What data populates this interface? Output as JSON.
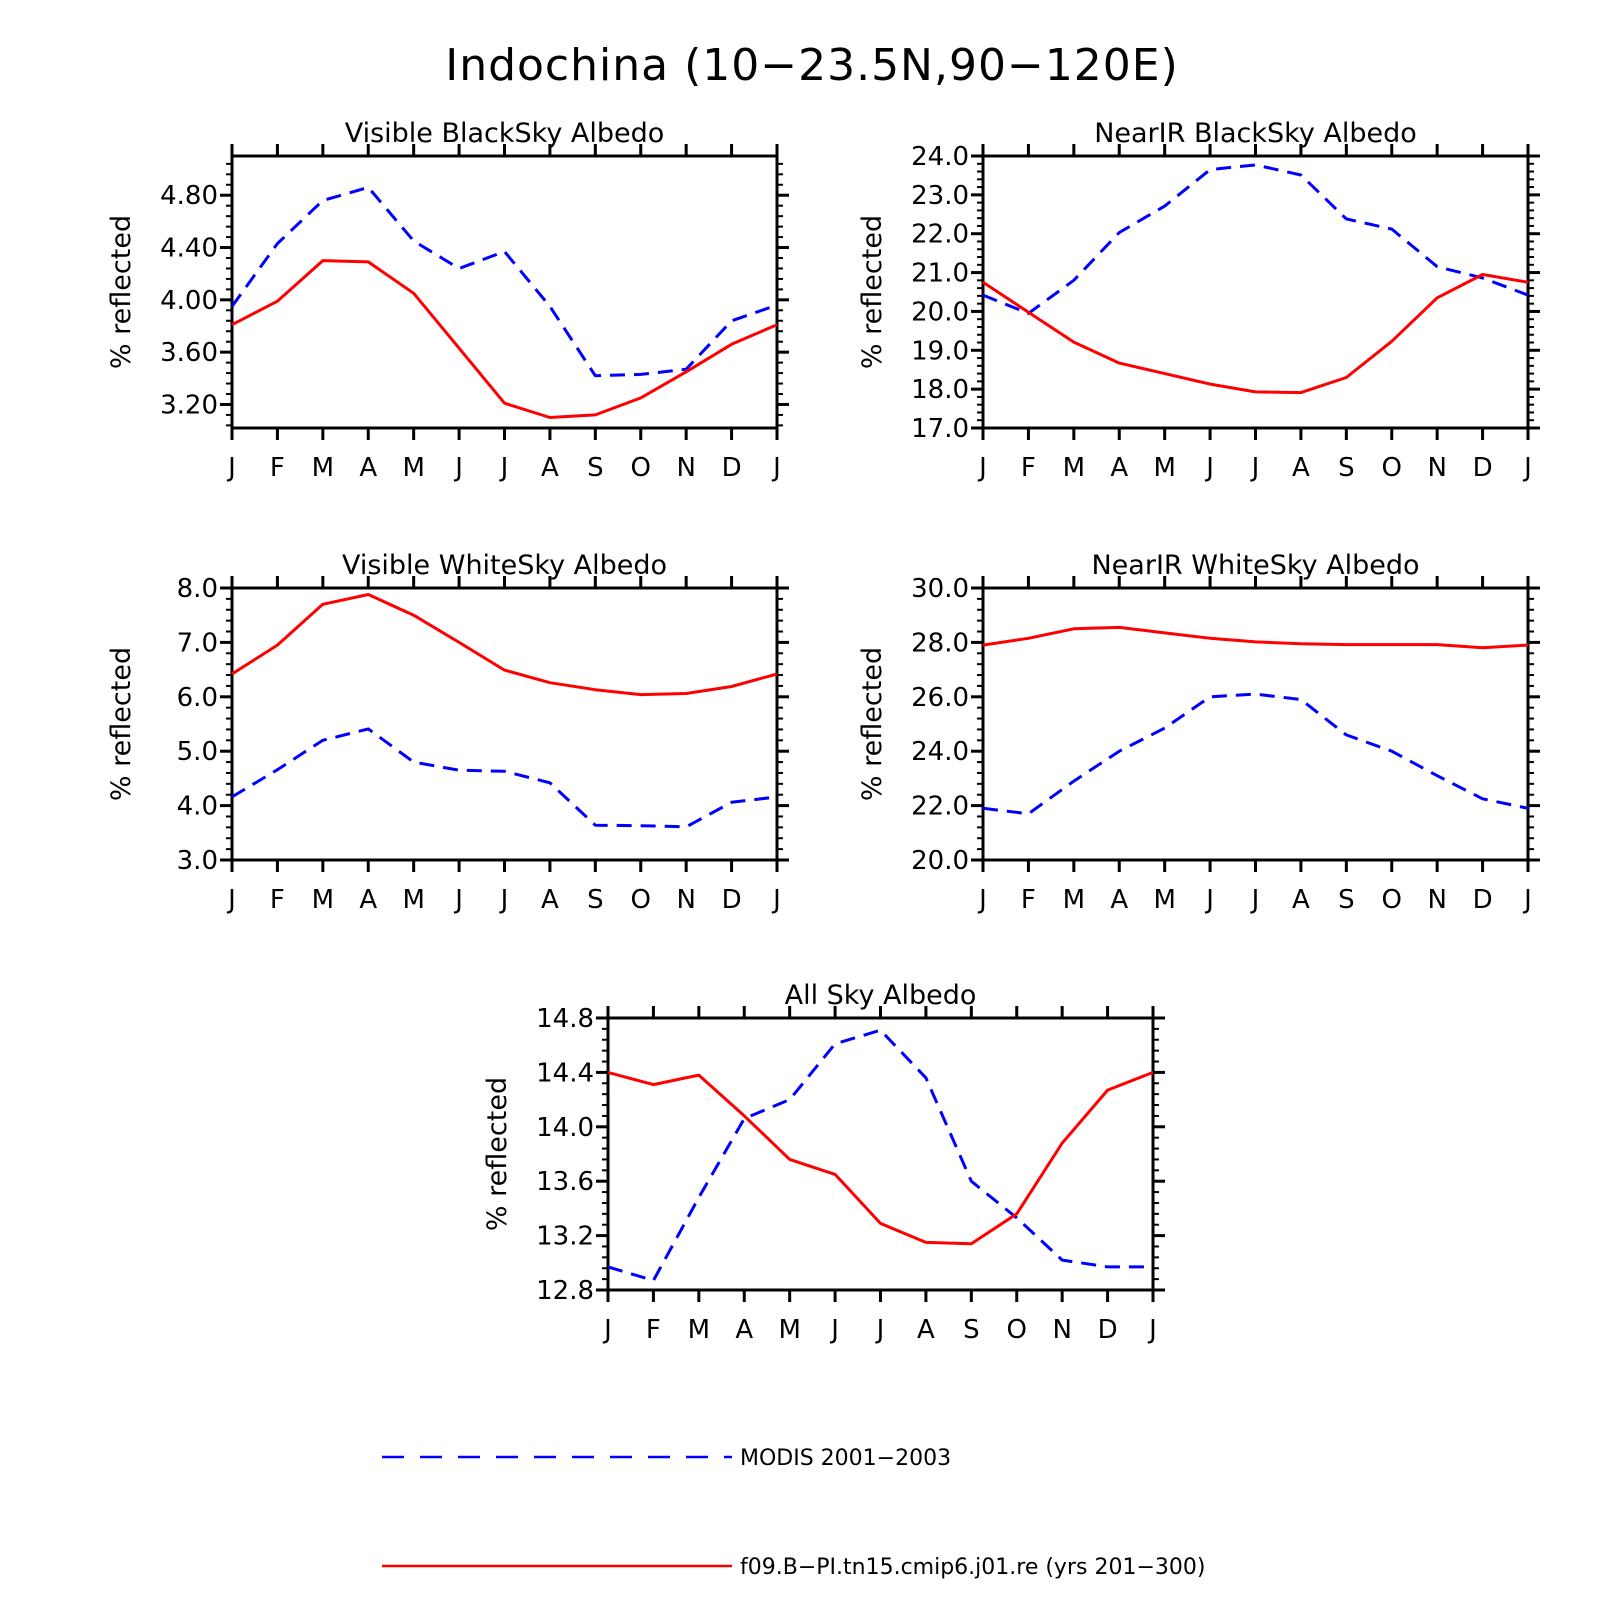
{
  "figure": {
    "title": "Indochina (10−23.5N,90−120E)"
  },
  "legend": {
    "entries": [
      {
        "label": "MODIS 2001−2003",
        "color": "#0000ff",
        "style": "dashed"
      },
      {
        "label": "f09.B−PI.tn15.cmip6.j01.re (yrs 201−300)",
        "color": "#ff0000",
        "style": "solid"
      }
    ]
  },
  "chart_data": [
    {
      "type": "line",
      "title": "Visible BlackSky Albedo",
      "ylabel": "% reflected",
      "x": [
        "J",
        "F",
        "M",
        "A",
        "M",
        "J",
        "J",
        "A",
        "S",
        "O",
        "N",
        "D",
        "J"
      ],
      "ylim": [
        3.02,
        5.1
      ],
      "yticks": [
        "3.20",
        "3.60",
        "4.00",
        "4.40",
        "4.80"
      ],
      "series": [
        {
          "name": "MODIS 2001−2003",
          "color": "#0000ff",
          "style": "dashed",
          "values": [
            3.95,
            4.43,
            4.76,
            4.86,
            4.45,
            4.24,
            4.37,
            3.95,
            3.42,
            3.43,
            3.47,
            3.84,
            3.96
          ]
        },
        {
          "name": "f09.B−PI.tn15.cmip6.j01.re (yrs 201−300)",
          "color": "#ff0000",
          "style": "solid",
          "values": [
            3.81,
            3.99,
            4.3,
            4.29,
            4.05,
            3.63,
            3.21,
            3.1,
            3.12,
            3.25,
            3.45,
            3.66,
            3.81
          ]
        }
      ]
    },
    {
      "type": "line",
      "title": "NearIR BlackSky Albedo",
      "ylabel": "% reflected",
      "x": [
        "J",
        "F",
        "M",
        "A",
        "M",
        "J",
        "J",
        "A",
        "S",
        "O",
        "N",
        "D",
        "J"
      ],
      "ylim": [
        17.0,
        24.0
      ],
      "yticks": [
        "17.0",
        "18.0",
        "19.0",
        "20.0",
        "21.0",
        "22.0",
        "23.0",
        "24.0"
      ],
      "series": [
        {
          "name": "MODIS 2001−2003",
          "color": "#0000ff",
          "style": "dashed",
          "values": [
            20.42,
            19.95,
            20.8,
            22.03,
            22.71,
            23.65,
            23.77,
            23.51,
            22.38,
            22.12,
            21.15,
            20.86,
            20.42
          ]
        },
        {
          "name": "f09.B−PI.tn15.cmip6.j01.re (yrs 201−300)",
          "color": "#ff0000",
          "style": "solid",
          "values": [
            20.75,
            19.98,
            19.21,
            18.67,
            18.4,
            18.13,
            17.93,
            17.91,
            18.3,
            19.23,
            20.35,
            20.95,
            20.75
          ]
        }
      ]
    },
    {
      "type": "line",
      "title": "Visible WhiteSky Albedo",
      "ylabel": "% reflected",
      "x": [
        "J",
        "F",
        "M",
        "A",
        "M",
        "J",
        "J",
        "A",
        "S",
        "O",
        "N",
        "D",
        "J"
      ],
      "ylim": [
        3.0,
        8.0
      ],
      "yticks": [
        "3.0",
        "4.0",
        "5.0",
        "6.0",
        "7.0",
        "8.0"
      ],
      "series": [
        {
          "name": "MODIS 2001−2003",
          "color": "#0000ff",
          "style": "dashed",
          "values": [
            4.16,
            4.66,
            5.2,
            5.41,
            4.8,
            4.65,
            4.63,
            4.42,
            3.64,
            3.63,
            3.61,
            4.06,
            4.16
          ]
        },
        {
          "name": "f09.B−PI.tn15.cmip6.j01.re (yrs 201−300)",
          "color": "#ff0000",
          "style": "solid",
          "values": [
            6.42,
            6.95,
            7.7,
            7.88,
            7.5,
            7.0,
            6.49,
            6.26,
            6.13,
            6.04,
            6.06,
            6.19,
            6.42
          ]
        }
      ]
    },
    {
      "type": "line",
      "title": "NearIR WhiteSky Albedo",
      "ylabel": "% reflected",
      "x": [
        "J",
        "F",
        "M",
        "A",
        "M",
        "J",
        "J",
        "A",
        "S",
        "O",
        "N",
        "D",
        "J"
      ],
      "ylim": [
        20.0,
        30.0
      ],
      "yticks": [
        "20.0",
        "22.0",
        "24.0",
        "26.0",
        "28.0",
        "30.0"
      ],
      "series": [
        {
          "name": "MODIS 2001−2003",
          "color": "#0000ff",
          "style": "dashed",
          "values": [
            21.9,
            21.7,
            22.9,
            24.0,
            24.85,
            26.0,
            26.1,
            25.9,
            24.6,
            24.0,
            23.1,
            22.25,
            21.9
          ]
        },
        {
          "name": "f09.B−PI.tn15.cmip6.j01.re (yrs 201−300)",
          "color": "#ff0000",
          "style": "solid",
          "values": [
            27.9,
            28.15,
            28.5,
            28.55,
            28.35,
            28.15,
            28.02,
            27.95,
            27.92,
            27.92,
            27.92,
            27.8,
            27.9
          ]
        }
      ]
    },
    {
      "type": "line",
      "title": "All Sky Albedo",
      "ylabel": "% reflected",
      "x": [
        "J",
        "F",
        "M",
        "A",
        "M",
        "J",
        "J",
        "A",
        "S",
        "O",
        "N",
        "D",
        "J"
      ],
      "ylim": [
        12.8,
        14.8
      ],
      "yticks": [
        "12.8",
        "13.2",
        "13.6",
        "14.0",
        "14.4",
        "14.8"
      ],
      "series": [
        {
          "name": "MODIS 2001−2003",
          "color": "#0000ff",
          "style": "dashed",
          "values": [
            12.97,
            12.87,
            13.48,
            14.06,
            14.2,
            14.61,
            14.71,
            14.36,
            13.6,
            13.33,
            13.02,
            12.97,
            12.97
          ]
        },
        {
          "name": "f09.B−PI.tn15.cmip6.j01.re (yrs 201−300)",
          "color": "#ff0000",
          "style": "solid",
          "values": [
            14.4,
            14.31,
            14.38,
            14.08,
            13.76,
            13.65,
            13.29,
            13.15,
            13.14,
            13.36,
            13.88,
            14.27,
            14.4
          ]
        }
      ]
    }
  ]
}
